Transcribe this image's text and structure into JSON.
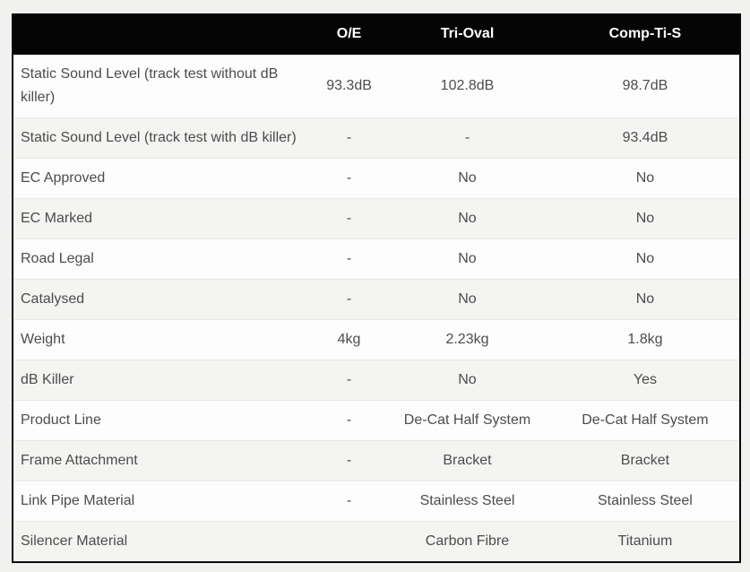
{
  "page": {
    "background_color": "#f1f1f0"
  },
  "table": {
    "header": {
      "spec_column_label": "",
      "columns": [
        {
          "label": "O/E"
        },
        {
          "label": "Tri-Oval"
        },
        {
          "label": "Comp-Ti-S"
        }
      ],
      "background_color": "#050505",
      "text_color": "#ffffff"
    },
    "rows": [
      {
        "label": "Static Sound Level (track test without dB killer)",
        "values": [
          "93.3dB",
          "102.8dB",
          "98.7dB"
        ]
      },
      {
        "label": "Static Sound Level (track test with dB killer)",
        "values": [
          "-",
          "-",
          "93.4dB"
        ]
      },
      {
        "label": "EC Approved",
        "values": [
          "-",
          "No",
          "No"
        ]
      },
      {
        "label": "EC Marked",
        "values": [
          "-",
          "No",
          "No"
        ]
      },
      {
        "label": "Road Legal",
        "values": [
          "-",
          "No",
          "No"
        ]
      },
      {
        "label": "Catalysed",
        "values": [
          "-",
          "No",
          "No"
        ]
      },
      {
        "label": "Weight",
        "values": [
          "4kg",
          "2.23kg",
          "1.8kg"
        ]
      },
      {
        "label": "dB Killer",
        "values": [
          "-",
          "No",
          "Yes"
        ]
      },
      {
        "label": "Product Line",
        "values": [
          "-",
          "De-Cat Half System",
          "De-Cat Half System"
        ]
      },
      {
        "label": "Frame Attachment",
        "values": [
          "-",
          "Bracket",
          "Bracket"
        ]
      },
      {
        "label": "Link Pipe Material",
        "values": [
          "-",
          "Stainless Steel",
          "Stainless Steel"
        ]
      },
      {
        "label": "Silencer Material",
        "values": [
          "",
          "Carbon Fibre",
          "Titanium"
        ]
      }
    ],
    "colors": {
      "row_odd_bg": "#fdfdfd",
      "row_even_bg": "#f4f4f3",
      "divider": "#e7e7e5",
      "body_text": "#4c4c4c",
      "outer_border": "#0a0a0a"
    }
  }
}
